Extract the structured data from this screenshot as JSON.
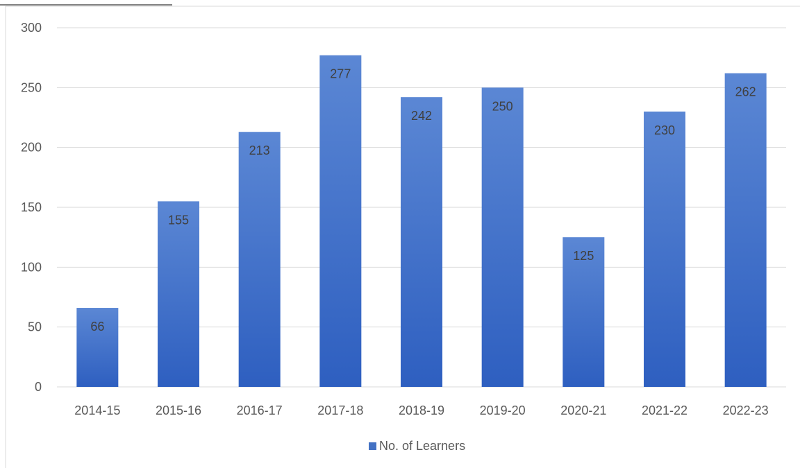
{
  "chart_data": {
    "type": "bar",
    "title": "",
    "xlabel": "",
    "ylabel": "",
    "categories": [
      "2014-15",
      "2015-16",
      "2016-17",
      "2017-18",
      "2018-19",
      "2019-20",
      "2020-21",
      "2021-22",
      "2022-23"
    ],
    "series": [
      {
        "name": "No. of Learners",
        "values": [
          66,
          155,
          213,
          277,
          242,
          250,
          125,
          230,
          262
        ],
        "color": "#4472C4"
      }
    ],
    "ylim": [
      0,
      300
    ],
    "yticks": [
      "0",
      "50",
      "100",
      "150",
      "200",
      "250",
      "300"
    ],
    "grid": true,
    "data_labels": true,
    "legend": "bottom-center"
  },
  "colors": {
    "bar_top": "#5B87D4",
    "bar_bottom": "#2E5FC0",
    "grid": "#D9D9D9",
    "border": "#D9D9D9"
  }
}
